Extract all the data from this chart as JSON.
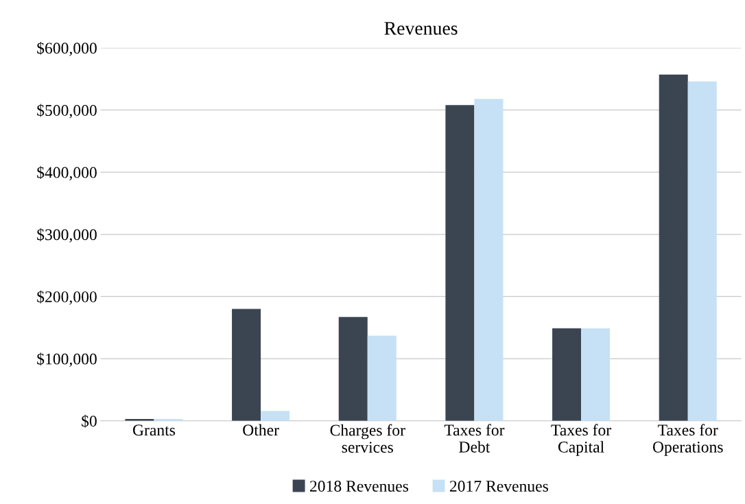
{
  "chart_data": {
    "type": "bar",
    "title": "Revenues",
    "categories": [
      "Grants",
      "Other",
      "Charges for\nservices",
      "Taxes for\nDebt",
      "Taxes for\nCapital",
      "Taxes for\nOperations"
    ],
    "series": [
      {
        "name": "2018 Revenues",
        "color": "#3b4552",
        "values": [
          3000,
          180000,
          167000,
          508000,
          149000,
          557000
        ]
      },
      {
        "name": "2017 Revenues",
        "color": "#c6e1f5",
        "values": [
          3000,
          16000,
          137000,
          518000,
          149000,
          546000
        ]
      }
    ],
    "ylim": [
      0,
      600000
    ],
    "yticks": [
      {
        "value": 0,
        "label": "$0"
      },
      {
        "value": 100000,
        "label": "$100,000"
      },
      {
        "value": 200000,
        "label": "$200,000"
      },
      {
        "value": 300000,
        "label": "$300,000"
      },
      {
        "value": 400000,
        "label": "$400,000"
      },
      {
        "value": 500000,
        "label": "$500,000"
      },
      {
        "value": 600000,
        "label": "$600,000"
      }
    ],
    "grid": "y",
    "legend": "bottom"
  }
}
